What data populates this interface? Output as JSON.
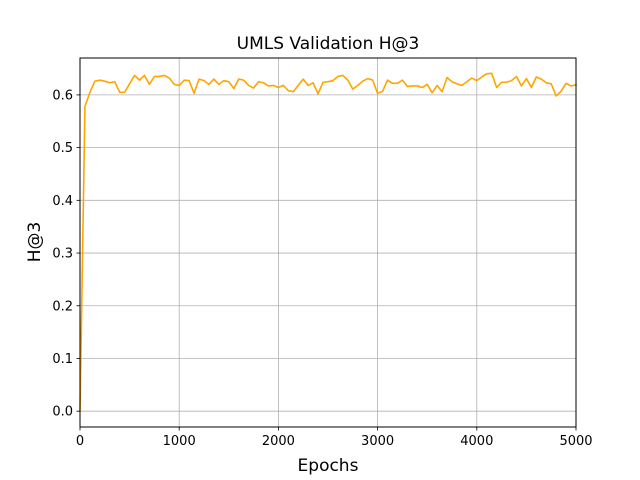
{
  "chart_data": {
    "type": "line",
    "title": "UMLS Validation H@3",
    "xlabel": "Epochs",
    "ylabel": "H@3",
    "xlim": [
      0,
      5000
    ],
    "ylim": [
      -0.03,
      0.67
    ],
    "xticks": [
      0,
      1000,
      2000,
      3000,
      4000,
      5000
    ],
    "xtick_labels": [
      "0",
      "1000",
      "2000",
      "3000",
      "4000",
      "5000"
    ],
    "yticks": [
      0.0,
      0.1,
      0.2,
      0.3,
      0.4,
      0.5,
      0.6
    ],
    "ytick_labels": [
      "0.0",
      "0.1",
      "0.2",
      "0.3",
      "0.4",
      "0.5",
      "0.6"
    ],
    "grid": true,
    "legend": "none",
    "series": [
      {
        "color": "#ffa500",
        "x": [
          0,
          50,
          100,
          150,
          200,
          250,
          300,
          350,
          400,
          450,
          500,
          550,
          600,
          650,
          700,
          750,
          800,
          850,
          900,
          950,
          1000,
          1050,
          1100,
          1150,
          1200,
          1250,
          1300,
          1350,
          1400,
          1450,
          1500,
          1550,
          1600,
          1650,
          1700,
          1750,
          1800,
          1850,
          1900,
          1950,
          2000,
          2050,
          2100,
          2150,
          2200,
          2250,
          2300,
          2350,
          2400,
          2450,
          2500,
          2550,
          2600,
          2650,
          2700,
          2750,
          2800,
          2850,
          2900,
          2950,
          3000,
          3050,
          3100,
          3150,
          3200,
          3250,
          3300,
          3350,
          3400,
          3450,
          3500,
          3550,
          3600,
          3650,
          3700,
          3750,
          3800,
          3850,
          3900,
          3950,
          4000,
          4050,
          4100,
          4150,
          4200,
          4250,
          4300,
          4350,
          4400,
          4450,
          4500,
          4550,
          4600,
          4650,
          4700,
          4750,
          4800,
          4850,
          4900,
          4950,
          5000
        ],
        "y": [
          0.0,
          0.578,
          0.605,
          0.626,
          0.628,
          0.626,
          0.623,
          0.625,
          0.605,
          0.605,
          0.621,
          0.637,
          0.628,
          0.637,
          0.62,
          0.635,
          0.635,
          0.637,
          0.632,
          0.62,
          0.618,
          0.628,
          0.627,
          0.603,
          0.63,
          0.627,
          0.62,
          0.63,
          0.62,
          0.627,
          0.625,
          0.612,
          0.63,
          0.628,
          0.618,
          0.613,
          0.625,
          0.623,
          0.617,
          0.618,
          0.614,
          0.618,
          0.608,
          0.606,
          0.618,
          0.63,
          0.618,
          0.623,
          0.602,
          0.624,
          0.625,
          0.627,
          0.635,
          0.637,
          0.628,
          0.611,
          0.618,
          0.626,
          0.631,
          0.628,
          0.603,
          0.607,
          0.628,
          0.622,
          0.622,
          0.628,
          0.616,
          0.617,
          0.617,
          0.614,
          0.62,
          0.604,
          0.618,
          0.606,
          0.633,
          0.625,
          0.621,
          0.618,
          0.625,
          0.632,
          0.627,
          0.634,
          0.64,
          0.641,
          0.614,
          0.624,
          0.624,
          0.627,
          0.635,
          0.617,
          0.631,
          0.614,
          0.634,
          0.63,
          0.623,
          0.621,
          0.598,
          0.607,
          0.622,
          0.617,
          0.619
        ]
      }
    ]
  }
}
